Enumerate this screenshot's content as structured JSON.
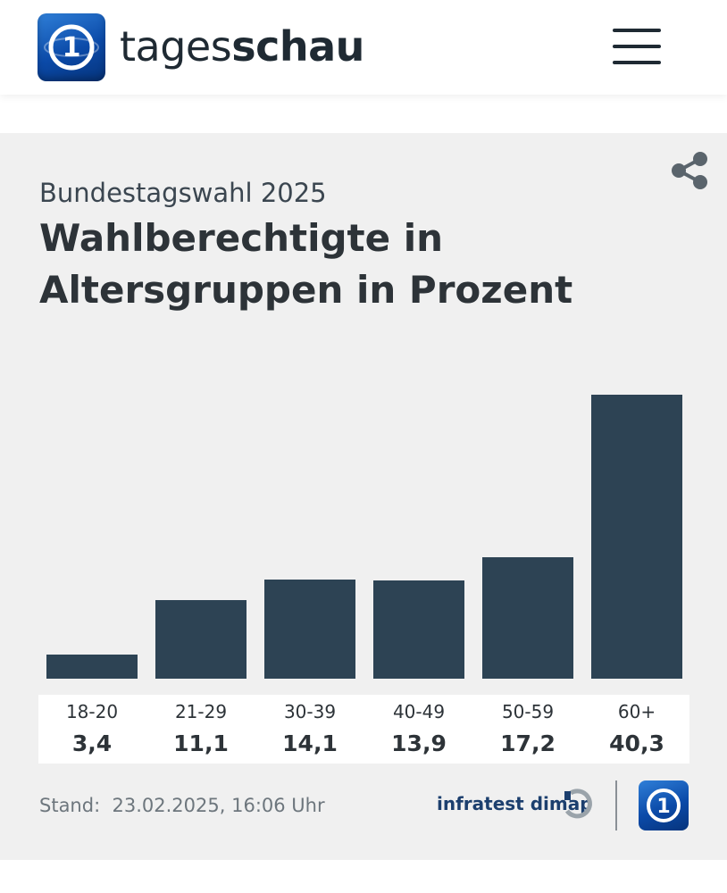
{
  "header": {
    "brand_light": "tages",
    "brand_bold": "schau",
    "logo_text": "1",
    "menu_icon": "hamburger-menu-icon"
  },
  "card": {
    "share_icon": "share-icon",
    "subtitle": "Bundestagswahl 2025",
    "title": "Wahlberechtigte in Altersgruppen in Prozent",
    "footer": {
      "stand_label": "Stand:",
      "stand_value": "23.02.2025, 16:06 Uhr",
      "source": "infratest dimap"
    }
  },
  "colors": {
    "bar": "#2d4354",
    "card_bg": "#f0f0f0",
    "text": "#2d3338"
  },
  "chart_data": {
    "type": "bar",
    "title": "Wahlberechtigte in Altersgruppen in Prozent",
    "subtitle": "Bundestagswahl 2025",
    "categories": [
      "18-20",
      "21-29",
      "30-39",
      "40-49",
      "50-59",
      "60+"
    ],
    "values": [
      3.4,
      11.1,
      14.1,
      13.9,
      17.2,
      40.3
    ],
    "value_labels": [
      "3,4",
      "11,1",
      "14,1",
      "13,9",
      "17,2",
      "40,3"
    ],
    "xlabel": "",
    "ylabel": "",
    "ylim": [
      0,
      40.3
    ],
    "grid": false
  }
}
